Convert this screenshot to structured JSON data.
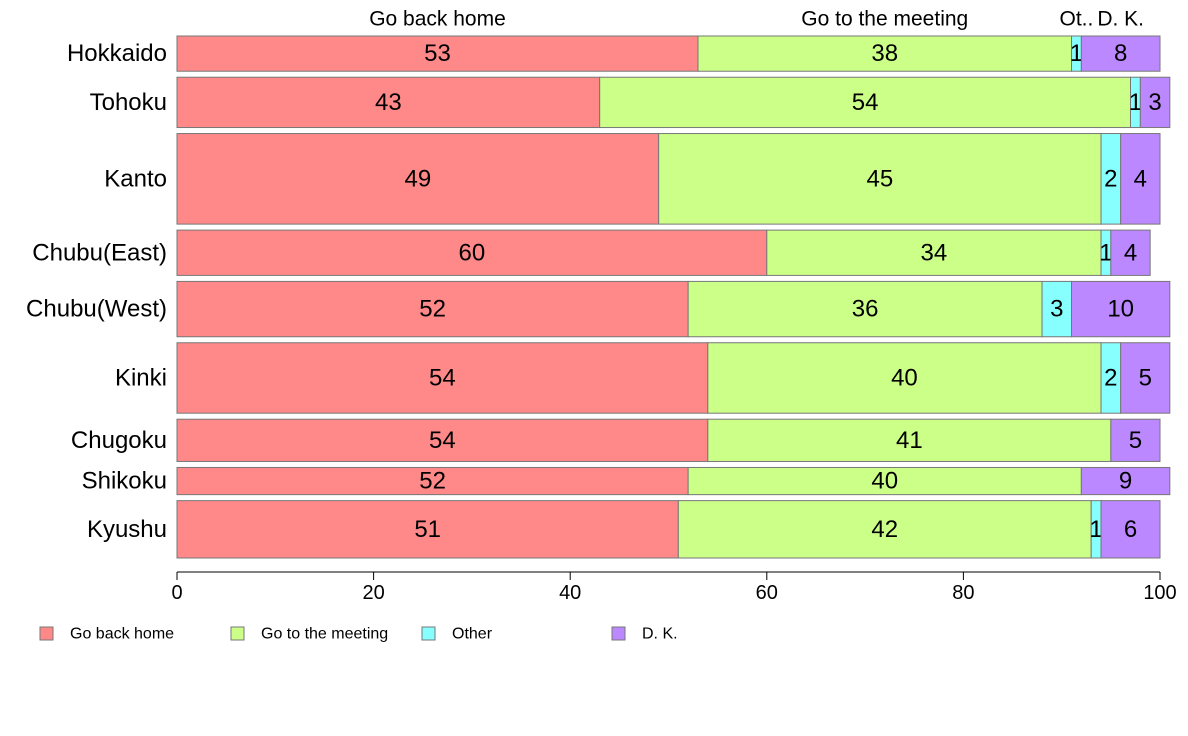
{
  "chart_data": {
    "type": "bar",
    "orientation": "horizontal",
    "stacked": true,
    "title": "",
    "xlabel": "",
    "ylabel": "",
    "xlim": [
      0,
      100
    ],
    "x_ticks": [
      0,
      20,
      40,
      60,
      80,
      100
    ],
    "grid": false,
    "legend_position": "bottom",
    "categories": [
      "Hokkaido",
      "Tohoku",
      "Kanto",
      "Chubu(East)",
      "Chubu(West)",
      "Kinki",
      "Chugoku",
      "Shikoku",
      "Kyushu"
    ],
    "bar_widths": [
      3.5,
      5,
      9,
      4.5,
      5.5,
      7,
      4.2,
      2.7,
      5.7
    ],
    "series": [
      {
        "name": "Go back home",
        "color": "#ff8888",
        "values": [
          53,
          43,
          49,
          60,
          52,
          54,
          54,
          52,
          51
        ]
      },
      {
        "name": "Go to the meeting",
        "color": "#ccff88",
        "values": [
          38,
          54,
          45,
          34,
          36,
          40,
          41,
          40,
          42
        ]
      },
      {
        "name": "Other",
        "color": "#88ffff",
        "values": [
          1,
          1,
          2,
          1,
          3,
          2,
          0,
          0,
          1
        ]
      },
      {
        "name": "D. K.",
        "color": "#bb88ff",
        "values": [
          8,
          3,
          4,
          4,
          10,
          5,
          5,
          9,
          6
        ]
      }
    ],
    "value_labels": [
      [
        "53",
        "38",
        "1",
        "8"
      ],
      [
        "43",
        "54",
        "1",
        "3"
      ],
      [
        "49",
        "45",
        "2",
        "4"
      ],
      [
        "60",
        "34",
        "1",
        "4"
      ],
      [
        "52",
        "36",
        "3",
        "10"
      ],
      [
        "54",
        "40",
        "2",
        "5"
      ],
      [
        "54",
        "41",
        "",
        "5"
      ],
      [
        "52",
        "40",
        "",
        "9"
      ],
      [
        "51",
        "42",
        "1",
        "6"
      ]
    ],
    "column_headers": [
      "Go back home",
      "Go to the meeting",
      "Ot..",
      "D. K."
    ]
  }
}
